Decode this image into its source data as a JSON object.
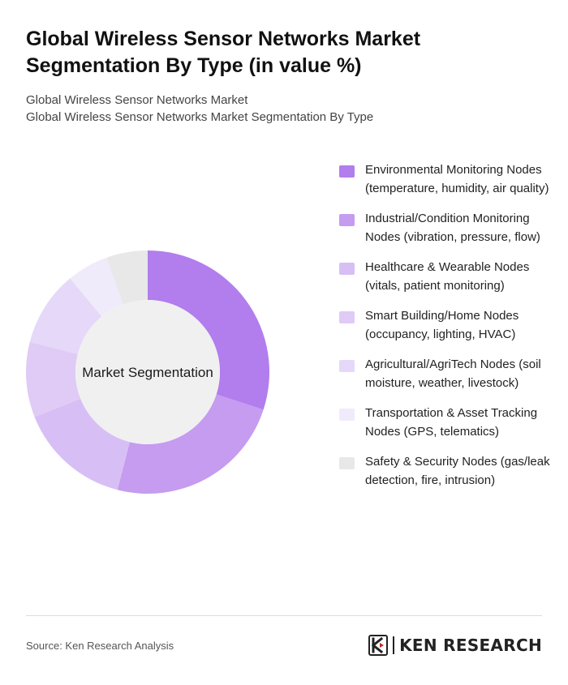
{
  "header": {
    "title": "Global Wireless Sensor Networks Market Segmentation By Type (in value %)",
    "subtitle_line1": "Global Wireless Sensor Networks Market",
    "subtitle_line2": "Global Wireless Sensor Networks Market Segmentation By Type"
  },
  "chart_data": {
    "type": "pie",
    "style": "donut",
    "center_label": "Market Segmentation",
    "legend_position": "right",
    "categories": [
      "Environmental Monitoring Nodes (temperature, humidity, air quality)",
      "Industrial/Condition Monitoring Nodes (vibration, pressure, flow)",
      "Healthcare & Wearable Nodes (vitals, patient monitoring)",
      "Smart Building/Home Nodes (occupancy, lighting, HVAC)",
      "Agricultural/AgriTech Nodes (soil moisture, weather, livestock)",
      "Transportation & Asset Tracking Nodes (GPS, telematics)",
      "Safety & Security Nodes (gas/leak detection, fire, intrusion)"
    ],
    "values": [
      30,
      24,
      15,
      10,
      10,
      5.5,
      5.5
    ],
    "colors": [
      "#b27ded",
      "#c59cf0",
      "#d7bff5",
      "#dfcbf6",
      "#e5d8f8",
      "#f0ebfb",
      "#e8e8e8"
    ]
  },
  "footer": {
    "source": "Source: Ken Research Analysis",
    "brand": "KEN RESEARCH"
  }
}
